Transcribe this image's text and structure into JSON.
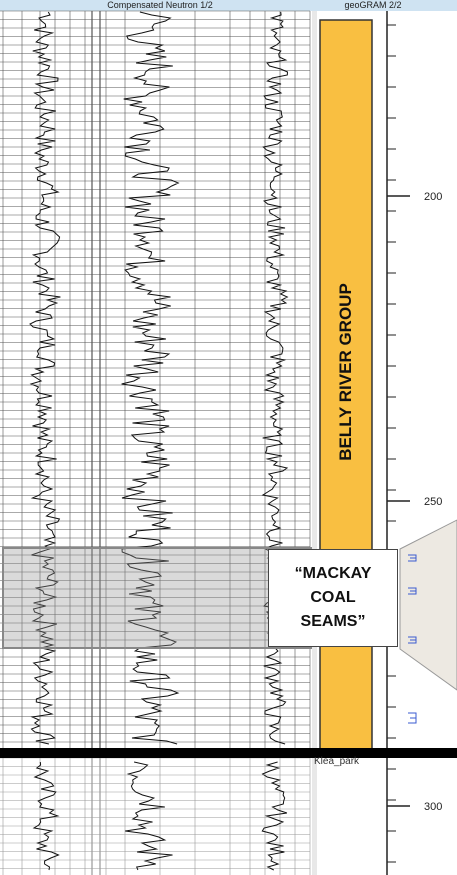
{
  "header": {
    "tabs": [
      "Compensated Neutron 1/2",
      "geoGRAM 2/2"
    ]
  },
  "formation": {
    "label": "BELLY RIVER GROUP"
  },
  "annotation": {
    "label": "“MACKAY COAL SEAMS”"
  },
  "marker": {
    "label": "Klea_park"
  },
  "depth_ticks": [
    200,
    250,
    300
  ]
}
